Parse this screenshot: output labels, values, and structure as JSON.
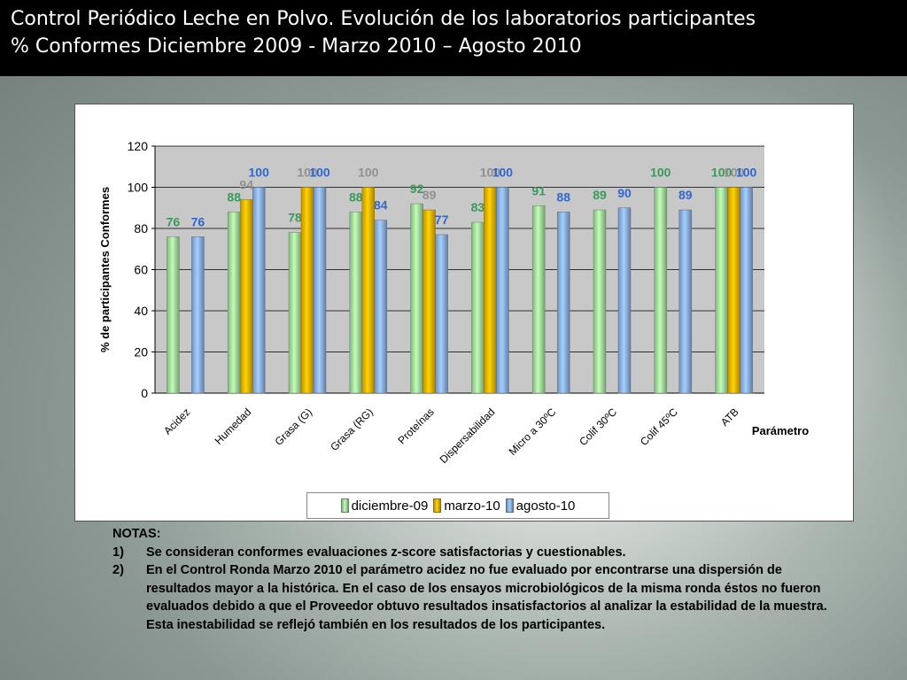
{
  "header": {
    "title_line1": "Control Periódico Leche en Polvo. Evolución de los laboratorios participantes",
    "title_line2": "% Conformes Diciembre 2009 -  Marzo 2010 – Agosto 2010"
  },
  "chart_data": {
    "type": "bar",
    "ylabel": "% de participantes Conformes",
    "xlabel": "Parámetro",
    "ylim": [
      0,
      120
    ],
    "yticks": [
      0,
      20,
      40,
      60,
      80,
      100,
      120
    ],
    "categories": [
      "Acidez",
      "Humedad",
      "Grasa (G)",
      "Grasa (RG)",
      "Proteínas",
      "Dispersabilidad",
      "Micro a 30ºC",
      "Colif 30ºC",
      "Colif 45ºC",
      "ATB"
    ],
    "series": [
      {
        "name": "diciembre-09",
        "color": "#a8e0a0",
        "label_color": "#3a9a5a",
        "values": [
          76,
          88,
          78,
          88,
          92,
          83,
          91,
          89,
          100,
          100
        ]
      },
      {
        "name": "marzo-10",
        "color": "#f0b800",
        "label_color": "#909090",
        "values": [
          null,
          94,
          100,
          100,
          89,
          100,
          null,
          null,
          null,
          100
        ]
      },
      {
        "name": "agosto-10",
        "color": "#8fb4e8",
        "label_color": "#3366cc",
        "values": [
          76,
          100,
          100,
          84,
          77,
          100,
          88,
          90,
          89,
          100
        ]
      }
    ],
    "legend_position": "bottom",
    "grid": true
  },
  "notes": {
    "heading": "NOTAS:",
    "items": [
      {
        "num": "1)",
        "text": "Se consideran conformes evaluaciones z-score satisfactorias y cuestionables."
      },
      {
        "num": "2)",
        "text": "En el Control Ronda Marzo 2010 el parámetro acidez no fue evaluado por encontrarse una dispersión de resultados mayor a la histórica. En el caso de los ensayos microbiológicos de la misma ronda éstos no fueron evaluados debido a que el Proveedor obtuvo  resultados insatisfactorios al analizar la estabilidad de la muestra. Esta inestabilidad se reflejó también en los resultados de los participantes."
      }
    ]
  }
}
